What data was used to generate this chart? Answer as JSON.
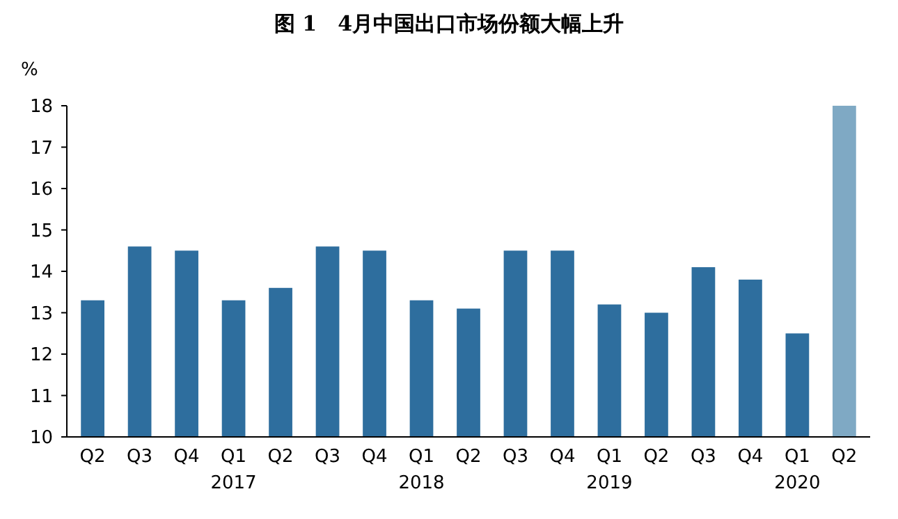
{
  "chart_data": {
    "type": "bar",
    "title": "图 1　4月中国出口市场份额大幅上升",
    "ylabel": "%",
    "categories": [
      "Q2",
      "Q3",
      "Q4",
      "Q1\n2017",
      "Q2",
      "Q3",
      "Q4",
      "Q1\n2018",
      "Q2",
      "Q3",
      "Q4",
      "Q1\n2019",
      "Q2",
      "Q3",
      "Q4",
      "Q1\n2020",
      "Q2"
    ],
    "values": [
      13.3,
      14.6,
      14.5,
      13.3,
      13.6,
      14.6,
      14.5,
      13.3,
      13.1,
      14.5,
      14.5,
      13.2,
      13.0,
      14.1,
      13.8,
      12.5,
      18.0
    ],
    "colors": [
      "#2e6e9e",
      "#2e6e9e",
      "#2e6e9e",
      "#2e6e9e",
      "#2e6e9e",
      "#2e6e9e",
      "#2e6e9e",
      "#2e6e9e",
      "#2e6e9e",
      "#2e6e9e",
      "#2e6e9e",
      "#2e6e9e",
      "#2e6e9e",
      "#2e6e9e",
      "#2e6e9e",
      "#2e6e9e",
      "#7fa9c4"
    ],
    "ylim": [
      10,
      18
    ],
    "yticks": [
      10,
      11,
      12,
      13,
      14,
      15,
      16,
      17,
      18
    ]
  }
}
